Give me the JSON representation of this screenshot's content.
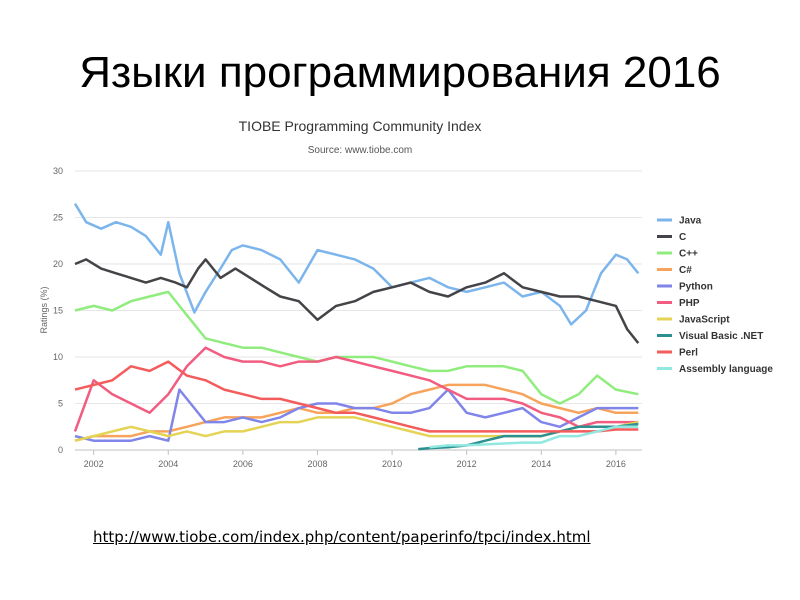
{
  "slide": {
    "title": "Языки программирования 2016",
    "url": "http://www.tiobe.com/index.php/content/paperinfo/tpci/index.html"
  },
  "chart_data": {
    "type": "line",
    "title": "TIOBE Programming Community Index",
    "subtitle": "Source: www.tiobe.com",
    "ylabel": "Ratings (%)",
    "xlabel": "",
    "xlim": [
      2001.5,
      2016.7
    ],
    "ylim": [
      0,
      30
    ],
    "xticks": [
      "2002",
      "2004",
      "2006",
      "2008",
      "2010",
      "2012",
      "2014",
      "2016"
    ],
    "yticks": [
      "0",
      "5",
      "10",
      "15",
      "20",
      "25",
      "30"
    ],
    "grid": "horizontal",
    "legend": "right",
    "series": [
      {
        "name": "Java",
        "color": "#7cb5ec",
        "points": [
          [
            2001.5,
            26.5
          ],
          [
            2001.8,
            24.5
          ],
          [
            2002.2,
            23.8
          ],
          [
            2002.6,
            24.5
          ],
          [
            2003,
            24.0
          ],
          [
            2003.4,
            23.0
          ],
          [
            2003.8,
            21.0
          ],
          [
            2004.0,
            24.5
          ],
          [
            2004.3,
            19.0
          ],
          [
            2004.7,
            14.8
          ],
          [
            2005.0,
            17.0
          ],
          [
            2005.4,
            19.5
          ],
          [
            2005.7,
            21.5
          ],
          [
            2006.0,
            22.0
          ],
          [
            2006.5,
            21.5
          ],
          [
            2007.0,
            20.5
          ],
          [
            2007.5,
            18.0
          ],
          [
            2008.0,
            21.5
          ],
          [
            2008.5,
            21.0
          ],
          [
            2009.0,
            20.5
          ],
          [
            2009.5,
            19.5
          ],
          [
            2010.0,
            17.5
          ],
          [
            2010.5,
            18.0
          ],
          [
            2011.0,
            18.5
          ],
          [
            2011.5,
            17.5
          ],
          [
            2012.0,
            17.0
          ],
          [
            2012.5,
            17.5
          ],
          [
            2013.0,
            18.0
          ],
          [
            2013.5,
            16.5
          ],
          [
            2014.0,
            17.0
          ],
          [
            2014.5,
            15.5
          ],
          [
            2014.8,
            13.5
          ],
          [
            2015.2,
            15.0
          ],
          [
            2015.6,
            19.0
          ],
          [
            2016.0,
            21.0
          ],
          [
            2016.3,
            20.5
          ],
          [
            2016.6,
            19.0
          ]
        ]
      },
      {
        "name": "C",
        "color": "#434348",
        "points": [
          [
            2001.5,
            20.0
          ],
          [
            2001.8,
            20.5
          ],
          [
            2002.2,
            19.5
          ],
          [
            2002.6,
            19.0
          ],
          [
            2003,
            18.5
          ],
          [
            2003.4,
            18.0
          ],
          [
            2003.8,
            18.5
          ],
          [
            2004.2,
            18.0
          ],
          [
            2004.5,
            17.5
          ],
          [
            2004.8,
            19.5
          ],
          [
            2005.0,
            20.5
          ],
          [
            2005.4,
            18.5
          ],
          [
            2005.8,
            19.5
          ],
          [
            2006.2,
            18.5
          ],
          [
            2006.6,
            17.5
          ],
          [
            2007.0,
            16.5
          ],
          [
            2007.5,
            16.0
          ],
          [
            2008.0,
            14.0
          ],
          [
            2008.5,
            15.5
          ],
          [
            2009.0,
            16.0
          ],
          [
            2009.5,
            17.0
          ],
          [
            2010.0,
            17.5
          ],
          [
            2010.5,
            18.0
          ],
          [
            2011.0,
            17.0
          ],
          [
            2011.5,
            16.5
          ],
          [
            2012.0,
            17.5
          ],
          [
            2012.5,
            18.0
          ],
          [
            2013.0,
            19.0
          ],
          [
            2013.5,
            17.5
          ],
          [
            2014.0,
            17.0
          ],
          [
            2014.5,
            16.5
          ],
          [
            2015.0,
            16.5
          ],
          [
            2015.5,
            16.0
          ],
          [
            2016.0,
            15.5
          ],
          [
            2016.3,
            13.0
          ],
          [
            2016.6,
            11.5
          ]
        ]
      },
      {
        "name": "C++",
        "color": "#90ed7d",
        "points": [
          [
            2001.5,
            15.0
          ],
          [
            2002.0,
            15.5
          ],
          [
            2002.5,
            15.0
          ],
          [
            2003.0,
            16.0
          ],
          [
            2003.5,
            16.5
          ],
          [
            2004.0,
            17.0
          ],
          [
            2004.3,
            15.5
          ],
          [
            2004.6,
            14.0
          ],
          [
            2005.0,
            12.0
          ],
          [
            2005.5,
            11.5
          ],
          [
            2006.0,
            11.0
          ],
          [
            2006.5,
            11.0
          ],
          [
            2007.0,
            10.5
          ],
          [
            2007.5,
            10.0
          ],
          [
            2008.0,
            9.5
          ],
          [
            2008.5,
            10.0
          ],
          [
            2009.0,
            10.0
          ],
          [
            2009.5,
            10.0
          ],
          [
            2010.0,
            9.5
          ],
          [
            2010.5,
            9.0
          ],
          [
            2011.0,
            8.5
          ],
          [
            2011.5,
            8.5
          ],
          [
            2012.0,
            9.0
          ],
          [
            2012.5,
            9.0
          ],
          [
            2013.0,
            9.0
          ],
          [
            2013.5,
            8.5
          ],
          [
            2014.0,
            6.0
          ],
          [
            2014.5,
            5.0
          ],
          [
            2015.0,
            6.0
          ],
          [
            2015.5,
            8.0
          ],
          [
            2016.0,
            6.5
          ],
          [
            2016.6,
            6.0
          ]
        ]
      },
      {
        "name": "C#",
        "color": "#f7a35c",
        "points": [
          [
            2001.5,
            1.0
          ],
          [
            2002.0,
            1.5
          ],
          [
            2002.5,
            1.5
          ],
          [
            2003.0,
            1.5
          ],
          [
            2003.5,
            2.0
          ],
          [
            2004.0,
            2.0
          ],
          [
            2004.5,
            2.5
          ],
          [
            2005.0,
            3.0
          ],
          [
            2005.5,
            3.5
          ],
          [
            2006.0,
            3.5
          ],
          [
            2006.5,
            3.5
          ],
          [
            2007.0,
            4.0
          ],
          [
            2007.5,
            4.5
          ],
          [
            2008.0,
            4.0
          ],
          [
            2008.5,
            4.0
          ],
          [
            2009.0,
            4.5
          ],
          [
            2009.5,
            4.5
          ],
          [
            2010.0,
            5.0
          ],
          [
            2010.5,
            6.0
          ],
          [
            2011.0,
            6.5
          ],
          [
            2011.5,
            7.0
          ],
          [
            2012.0,
            7.0
          ],
          [
            2012.5,
            7.0
          ],
          [
            2013.0,
            6.5
          ],
          [
            2013.5,
            6.0
          ],
          [
            2014.0,
            5.0
          ],
          [
            2014.5,
            4.5
          ],
          [
            2015.0,
            4.0
          ],
          [
            2015.5,
            4.5
          ],
          [
            2016.0,
            4.0
          ],
          [
            2016.6,
            4.0
          ]
        ]
      },
      {
        "name": "Python",
        "color": "#8085e9",
        "points": [
          [
            2001.5,
            1.5
          ],
          [
            2002.0,
            1.0
          ],
          [
            2002.5,
            1.0
          ],
          [
            2003.0,
            1.0
          ],
          [
            2003.5,
            1.5
          ],
          [
            2004.0,
            1.0
          ],
          [
            2004.3,
            6.5
          ],
          [
            2004.6,
            5.0
          ],
          [
            2005.0,
            3.0
          ],
          [
            2005.5,
            3.0
          ],
          [
            2006.0,
            3.5
          ],
          [
            2006.5,
            3.0
          ],
          [
            2007.0,
            3.5
          ],
          [
            2007.5,
            4.5
          ],
          [
            2008.0,
            5.0
          ],
          [
            2008.5,
            5.0
          ],
          [
            2009.0,
            4.5
          ],
          [
            2009.5,
            4.5
          ],
          [
            2010.0,
            4.0
          ],
          [
            2010.5,
            4.0
          ],
          [
            2011.0,
            4.5
          ],
          [
            2011.5,
            6.5
          ],
          [
            2012.0,
            4.0
          ],
          [
            2012.5,
            3.5
          ],
          [
            2013.0,
            4.0
          ],
          [
            2013.5,
            4.5
          ],
          [
            2014.0,
            3.0
          ],
          [
            2014.5,
            2.5
          ],
          [
            2015.0,
            3.5
          ],
          [
            2015.5,
            4.5
          ],
          [
            2016.0,
            4.5
          ],
          [
            2016.6,
            4.5
          ]
        ]
      },
      {
        "name": "PHP",
        "color": "#f15c80",
        "points": [
          [
            2001.5,
            2.0
          ],
          [
            2002.0,
            7.5
          ],
          [
            2002.5,
            6.0
          ],
          [
            2003.0,
            5.0
          ],
          [
            2003.5,
            4.0
          ],
          [
            2004.0,
            6.0
          ],
          [
            2004.5,
            9.0
          ],
          [
            2005.0,
            11.0
          ],
          [
            2005.5,
            10.0
          ],
          [
            2006.0,
            9.5
          ],
          [
            2006.5,
            9.5
          ],
          [
            2007.0,
            9.0
          ],
          [
            2007.5,
            9.5
          ],
          [
            2008.0,
            9.5
          ],
          [
            2008.5,
            10.0
          ],
          [
            2009.0,
            9.5
          ],
          [
            2009.5,
            9.0
          ],
          [
            2010.0,
            8.5
          ],
          [
            2010.5,
            8.0
          ],
          [
            2011.0,
            7.5
          ],
          [
            2011.5,
            6.5
          ],
          [
            2012.0,
            5.5
          ],
          [
            2012.5,
            5.5
          ],
          [
            2013.0,
            5.5
          ],
          [
            2013.5,
            5.0
          ],
          [
            2014.0,
            4.0
          ],
          [
            2014.5,
            3.5
          ],
          [
            2015.0,
            2.5
          ],
          [
            2015.5,
            3.0
          ],
          [
            2016.0,
            3.0
          ],
          [
            2016.6,
            3.0
          ]
        ]
      },
      {
        "name": "JavaScript",
        "color": "#e4d354",
        "points": [
          [
            2001.5,
            1.0
          ],
          [
            2002.0,
            1.5
          ],
          [
            2002.5,
            2.0
          ],
          [
            2003.0,
            2.5
          ],
          [
            2003.5,
            2.0
          ],
          [
            2004.0,
            1.5
          ],
          [
            2004.5,
            2.0
          ],
          [
            2005.0,
            1.5
          ],
          [
            2005.5,
            2.0
          ],
          [
            2006.0,
            2.0
          ],
          [
            2006.5,
            2.5
          ],
          [
            2007.0,
            3.0
          ],
          [
            2007.5,
            3.0
          ],
          [
            2008.0,
            3.5
          ],
          [
            2008.5,
            3.5
          ],
          [
            2009.0,
            3.5
          ],
          [
            2009.5,
            3.0
          ],
          [
            2010.0,
            2.5
          ],
          [
            2010.5,
            2.0
          ],
          [
            2011.0,
            1.5
          ],
          [
            2011.5,
            1.5
          ],
          [
            2012.0,
            1.5
          ],
          [
            2012.5,
            1.5
          ],
          [
            2013.0,
            1.5
          ],
          [
            2013.5,
            1.5
          ],
          [
            2014.0,
            1.5
          ],
          [
            2014.5,
            2.0
          ],
          [
            2015.0,
            2.5
          ],
          [
            2015.5,
            2.5
          ],
          [
            2016.0,
            2.5
          ],
          [
            2016.6,
            3.0
          ]
        ]
      },
      {
        "name": "Visual Basic .NET",
        "color": "#2b908f",
        "points": [
          [
            2010.7,
            0.1
          ],
          [
            2011.0,
            0.2
          ],
          [
            2011.5,
            0.3
          ],
          [
            2012.0,
            0.5
          ],
          [
            2012.5,
            1.0
          ],
          [
            2013.0,
            1.5
          ],
          [
            2013.5,
            1.5
          ],
          [
            2014.0,
            1.5
          ],
          [
            2014.5,
            2.0
          ],
          [
            2015.0,
            2.5
          ],
          [
            2015.5,
            2.5
          ],
          [
            2016.0,
            2.5
          ],
          [
            2016.6,
            2.8
          ]
        ]
      },
      {
        "name": "Perl",
        "color": "#f45b5b",
        "points": [
          [
            2001.5,
            6.5
          ],
          [
            2002.0,
            7.0
          ],
          [
            2002.5,
            7.5
          ],
          [
            2003.0,
            9.0
          ],
          [
            2003.5,
            8.5
          ],
          [
            2004.0,
            9.5
          ],
          [
            2004.5,
            8.0
          ],
          [
            2005.0,
            7.5
          ],
          [
            2005.5,
            6.5
          ],
          [
            2006.0,
            6.0
          ],
          [
            2006.5,
            5.5
          ],
          [
            2007.0,
            5.5
          ],
          [
            2007.5,
            5.0
          ],
          [
            2008.0,
            4.5
          ],
          [
            2008.5,
            4.0
          ],
          [
            2009.0,
            4.0
          ],
          [
            2009.5,
            3.5
          ],
          [
            2010.0,
            3.0
          ],
          [
            2010.5,
            2.5
          ],
          [
            2011.0,
            2.0
          ],
          [
            2011.5,
            2.0
          ],
          [
            2012.0,
            2.0
          ],
          [
            2012.5,
            2.0
          ],
          [
            2013.0,
            2.0
          ],
          [
            2013.5,
            2.0
          ],
          [
            2014.0,
            2.0
          ],
          [
            2014.5,
            2.0
          ],
          [
            2015.0,
            2.0
          ],
          [
            2015.5,
            2.0
          ],
          [
            2016.0,
            2.2
          ],
          [
            2016.6,
            2.2
          ]
        ]
      },
      {
        "name": "Assembly language",
        "color": "#91e8e1",
        "points": [
          [
            2011.0,
            0.3
          ],
          [
            2011.5,
            0.5
          ],
          [
            2012.0,
            0.5
          ],
          [
            2012.5,
            0.6
          ],
          [
            2013.0,
            0.7
          ],
          [
            2013.5,
            0.8
          ],
          [
            2014.0,
            0.8
          ],
          [
            2014.5,
            1.5
          ],
          [
            2015.0,
            1.5
          ],
          [
            2015.5,
            2.0
          ],
          [
            2016.0,
            2.5
          ],
          [
            2016.6,
            2.5
          ]
        ]
      }
    ]
  }
}
